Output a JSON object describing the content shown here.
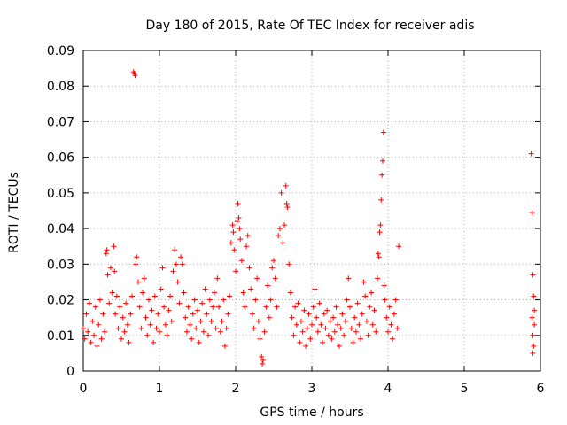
{
  "chart_data": {
    "type": "scatter",
    "title": "Day 180 of 2015, Rate Of TEC Index for receiver adis",
    "xlabel": "GPS time / hours",
    "ylabel": "ROTI / TECUs",
    "xlim": [
      0,
      6
    ],
    "ylim": [
      0,
      0.09
    ],
    "xticks": [
      0,
      1,
      2,
      3,
      4,
      5,
      6
    ],
    "xtick_labels": [
      "0",
      "1",
      "2",
      "3",
      "4",
      "5",
      "6"
    ],
    "yticks": [
      0,
      0.01,
      0.02,
      0.03,
      0.04,
      0.05,
      0.06,
      0.07,
      0.08,
      0.09
    ],
    "ytick_labels": [
      "0",
      "0.01",
      "0.02",
      "0.03",
      "0.04",
      "0.05",
      "0.06",
      "0.07",
      "0.08",
      "0.09"
    ],
    "grid": true,
    "marker": "+",
    "marker_color": "#ff0000",
    "series": [
      {
        "name": "ROTI",
        "points": [
          [
            0.0,
            0.012
          ],
          [
            0.02,
            0.009
          ],
          [
            0.04,
            0.016
          ],
          [
            0.06,
            0.011
          ],
          [
            0.08,
            0.019
          ],
          [
            0.1,
            0.008
          ],
          [
            0.12,
            0.014
          ],
          [
            0.14,
            0.01
          ],
          [
            0.16,
            0.018
          ],
          [
            0.18,
            0.007
          ],
          [
            0.2,
            0.013
          ],
          [
            0.22,
            0.02
          ],
          [
            0.24,
            0.009
          ],
          [
            0.26,
            0.016
          ],
          [
            0.28,
            0.011
          ],
          [
            0.3,
            0.033
          ],
          [
            0.31,
            0.034
          ],
          [
            0.32,
            0.027
          ],
          [
            0.34,
            0.019
          ],
          [
            0.36,
            0.029
          ],
          [
            0.38,
            0.022
          ],
          [
            0.4,
            0.035
          ],
          [
            0.41,
            0.028
          ],
          [
            0.42,
            0.016
          ],
          [
            0.44,
            0.021
          ],
          [
            0.46,
            0.012
          ],
          [
            0.48,
            0.018
          ],
          [
            0.5,
            0.009
          ],
          [
            0.52,
            0.015
          ],
          [
            0.54,
            0.011
          ],
          [
            0.56,
            0.019
          ],
          [
            0.58,
            0.013
          ],
          [
            0.6,
            0.008
          ],
          [
            0.62,
            0.016
          ],
          [
            0.64,
            0.021
          ],
          [
            0.66,
            0.084
          ],
          [
            0.67,
            0.0835
          ],
          [
            0.68,
            0.083
          ],
          [
            0.69,
            0.03
          ],
          [
            0.7,
            0.032
          ],
          [
            0.72,
            0.025
          ],
          [
            0.74,
            0.018
          ],
          [
            0.76,
            0.012
          ],
          [
            0.78,
            0.022
          ],
          [
            0.8,
            0.026
          ],
          [
            0.82,
            0.015
          ],
          [
            0.84,
            0.01
          ],
          [
            0.86,
            0.02
          ],
          [
            0.88,
            0.013
          ],
          [
            0.9,
            0.017
          ],
          [
            0.92,
            0.008
          ],
          [
            0.94,
            0.021
          ],
          [
            0.96,
            0.012
          ],
          [
            0.98,
            0.016
          ],
          [
            1.0,
            0.011
          ],
          [
            1.02,
            0.023
          ],
          [
            1.04,
            0.029
          ],
          [
            1.06,
            0.018
          ],
          [
            1.08,
            0.013
          ],
          [
            1.1,
            0.01
          ],
          [
            1.12,
            0.017
          ],
          [
            1.14,
            0.021
          ],
          [
            1.16,
            0.014
          ],
          [
            1.18,
            0.028
          ],
          [
            1.2,
            0.034
          ],
          [
            1.22,
            0.03
          ],
          [
            1.24,
            0.025
          ],
          [
            1.26,
            0.019
          ],
          [
            1.28,
            0.032
          ],
          [
            1.3,
            0.03
          ],
          [
            1.32,
            0.022
          ],
          [
            1.34,
            0.015
          ],
          [
            1.36,
            0.011
          ],
          [
            1.38,
            0.018
          ],
          [
            1.4,
            0.013
          ],
          [
            1.42,
            0.009
          ],
          [
            1.44,
            0.016
          ],
          [
            1.46,
            0.02
          ],
          [
            1.48,
            0.012
          ],
          [
            1.5,
            0.017
          ],
          [
            1.52,
            0.008
          ],
          [
            1.54,
            0.014
          ],
          [
            1.56,
            0.019
          ],
          [
            1.58,
            0.011
          ],
          [
            1.6,
            0.023
          ],
          [
            1.62,
            0.016
          ],
          [
            1.64,
            0.01
          ],
          [
            1.66,
            0.02
          ],
          [
            1.68,
            0.014
          ],
          [
            1.7,
            0.018
          ],
          [
            1.72,
            0.022
          ],
          [
            1.74,
            0.012
          ],
          [
            1.76,
            0.026
          ],
          [
            1.78,
            0.018
          ],
          [
            1.8,
            0.011
          ],
          [
            1.82,
            0.014
          ],
          [
            1.84,
            0.02
          ],
          [
            1.86,
            0.007
          ],
          [
            1.88,
            0.012
          ],
          [
            1.9,
            0.016
          ],
          [
            1.92,
            0.021
          ],
          [
            1.94,
            0.036
          ],
          [
            1.96,
            0.041
          ],
          [
            1.97,
            0.039
          ],
          [
            1.98,
            0.034
          ],
          [
            2.0,
            0.028
          ],
          [
            2.02,
            0.042
          ],
          [
            2.03,
            0.047
          ],
          [
            2.04,
            0.043
          ],
          [
            2.05,
            0.04
          ],
          [
            2.06,
            0.037
          ],
          [
            2.08,
            0.031
          ],
          [
            2.1,
            0.022
          ],
          [
            2.12,
            0.018
          ],
          [
            2.14,
            0.035
          ],
          [
            2.16,
            0.038
          ],
          [
            2.18,
            0.029
          ],
          [
            2.2,
            0.023
          ],
          [
            2.22,
            0.016
          ],
          [
            2.24,
            0.012
          ],
          [
            2.26,
            0.02
          ],
          [
            2.28,
            0.026
          ],
          [
            2.3,
            0.014
          ],
          [
            2.32,
            0.009
          ],
          [
            2.34,
            0.004
          ],
          [
            2.35,
            0.002
          ],
          [
            2.36,
            0.003
          ],
          [
            2.38,
            0.011
          ],
          [
            2.4,
            0.018
          ],
          [
            2.42,
            0.024
          ],
          [
            2.44,
            0.015
          ],
          [
            2.46,
            0.02
          ],
          [
            2.48,
            0.029
          ],
          [
            2.5,
            0.031
          ],
          [
            2.52,
            0.026
          ],
          [
            2.54,
            0.018
          ],
          [
            2.56,
            0.038
          ],
          [
            2.58,
            0.04
          ],
          [
            2.6,
            0.05
          ],
          [
            2.62,
            0.036
          ],
          [
            2.64,
            0.041
          ],
          [
            2.66,
            0.052
          ],
          [
            2.67,
            0.047
          ],
          [
            2.68,
            0.046
          ],
          [
            2.7,
            0.03
          ],
          [
            2.72,
            0.022
          ],
          [
            2.74,
            0.015
          ],
          [
            2.76,
            0.01
          ],
          [
            2.78,
            0.018
          ],
          [
            2.8,
            0.013
          ],
          [
            2.82,
            0.019
          ],
          [
            2.84,
            0.008
          ],
          [
            2.86,
            0.014
          ],
          [
            2.88,
            0.011
          ],
          [
            2.9,
            0.017
          ],
          [
            2.92,
            0.007
          ],
          [
            2.94,
            0.012
          ],
          [
            2.96,
            0.016
          ],
          [
            2.98,
            0.009
          ],
          [
            3.0,
            0.013
          ],
          [
            3.02,
            0.018
          ],
          [
            3.04,
            0.023
          ],
          [
            3.06,
            0.015
          ],
          [
            3.08,
            0.011
          ],
          [
            3.1,
            0.019
          ],
          [
            3.12,
            0.013
          ],
          [
            3.14,
            0.008
          ],
          [
            3.16,
            0.016
          ],
          [
            3.18,
            0.012
          ],
          [
            3.2,
            0.017
          ],
          [
            3.22,
            0.01
          ],
          [
            3.24,
            0.014
          ],
          [
            3.26,
            0.009
          ],
          [
            3.28,
            0.015
          ],
          [
            3.3,
            0.011
          ],
          [
            3.32,
            0.018
          ],
          [
            3.34,
            0.013
          ],
          [
            3.36,
            0.007
          ],
          [
            3.38,
            0.012
          ],
          [
            3.4,
            0.016
          ],
          [
            3.42,
            0.01
          ],
          [
            3.44,
            0.014
          ],
          [
            3.46,
            0.02
          ],
          [
            3.48,
            0.026
          ],
          [
            3.5,
            0.018
          ],
          [
            3.52,
            0.012
          ],
          [
            3.54,
            0.008
          ],
          [
            3.56,
            0.015
          ],
          [
            3.58,
            0.011
          ],
          [
            3.6,
            0.019
          ],
          [
            3.62,
            0.013
          ],
          [
            3.64,
            0.009
          ],
          [
            3.66,
            0.016
          ],
          [
            3.68,
            0.025
          ],
          [
            3.7,
            0.021
          ],
          [
            3.72,
            0.014
          ],
          [
            3.74,
            0.01
          ],
          [
            3.76,
            0.018
          ],
          [
            3.78,
            0.022
          ],
          [
            3.8,
            0.013
          ],
          [
            3.82,
            0.017
          ],
          [
            3.84,
            0.011
          ],
          [
            3.86,
            0.026
          ],
          [
            3.87,
            0.033
          ],
          [
            3.88,
            0.032
          ],
          [
            3.89,
            0.039
          ],
          [
            3.9,
            0.041
          ],
          [
            3.91,
            0.048
          ],
          [
            3.92,
            0.055
          ],
          [
            3.93,
            0.059
          ],
          [
            3.94,
            0.067
          ],
          [
            3.95,
            0.024
          ],
          [
            3.96,
            0.02
          ],
          [
            3.98,
            0.015
          ],
          [
            4.0,
            0.011
          ],
          [
            4.02,
            0.018
          ],
          [
            4.04,
            0.013
          ],
          [
            4.06,
            0.009
          ],
          [
            4.08,
            0.016
          ],
          [
            4.1,
            0.02
          ],
          [
            4.12,
            0.012
          ],
          [
            4.14,
            0.035
          ],
          [
            5.88,
            0.061
          ],
          [
            5.89,
            0.0445
          ],
          [
            5.9,
            0.027
          ],
          [
            5.91,
            0.021
          ],
          [
            5.92,
            0.017
          ],
          [
            5.89,
            0.015
          ],
          [
            5.9,
            0.01
          ],
          [
            5.91,
            0.007
          ],
          [
            5.9,
            0.005
          ],
          [
            5.92,
            0.013
          ]
        ]
      }
    ]
  }
}
